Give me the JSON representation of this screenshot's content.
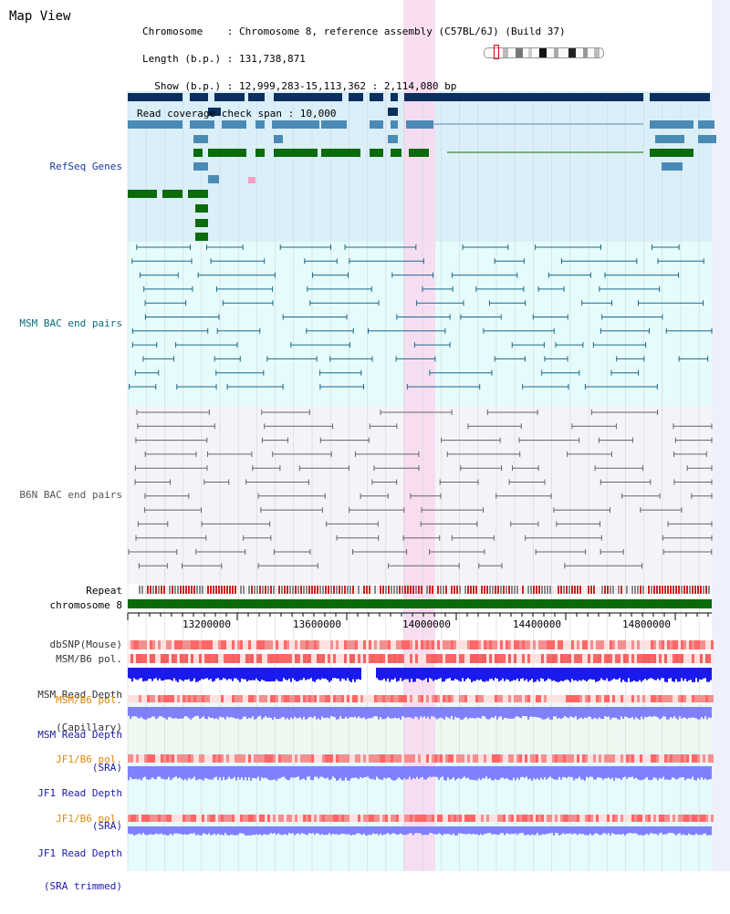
{
  "view_title": "Map View",
  "header": {
    "line1": "Chromosome    : Chromosome 8, reference assembly (C57BL/6J) (Build 37)",
    "line2": "Length (b.p.) : 131,738,871",
    "line3": "  Show (b.p.) : 12,999,283-15,113,362 : 2,114,080 bp",
    "line4": "Read coverage check span : 10,000"
  },
  "tracks": {
    "refseq": "RefSeq Genes",
    "msm_bac": "MSM BAC end pairs",
    "b6n_bac": "B6N BAC end pairs",
    "repeat": "Repeat",
    "chromosome": "chromosome 8",
    "dbsnp": "dbSNP(Mouse)",
    "msm_b6_pol": "MSM/B6 pol.",
    "msm_depth_cap_1": "MSM Read Depth",
    "msm_depth_cap_2": "(Capillary)",
    "msm_b6_pol_2": "MSM/B6 pol.",
    "msm_depth_sra_1": "MSM Read Depth",
    "msm_depth_sra_2": "(SRA)",
    "jf1_b6_pol": "JF1/B6 pol.",
    "jf1_depth_sra_1": "JF1 Read Depth",
    "jf1_depth_sra_2": "(SRA)",
    "jf1_b6_pol_2": "JF1/B6 pol.",
    "jf1_depth_trim_1": "JF1 Read Depth",
    "jf1_depth_trim_2": "(SRA trimmed)"
  },
  "axis": {
    "ticks": [
      "13200000",
      "13600000",
      "14000000",
      "14400000",
      "14800000"
    ]
  },
  "colors": {
    "refseq_bg": "#dbeff9",
    "msm_bg": "#e6fbfb",
    "b6n_bg": "#f4f4f8",
    "highlight": "#f8d8f0",
    "gene_dark": "#0b2f5e",
    "gene_mid": "#4a8bb5",
    "gene_green": "#0b6b0b",
    "chrom_bar": "#0b6b0b",
    "depth_blue": "#1a1aee",
    "depth_light": "#8080ff",
    "pol_red": "#ee3333"
  }
}
